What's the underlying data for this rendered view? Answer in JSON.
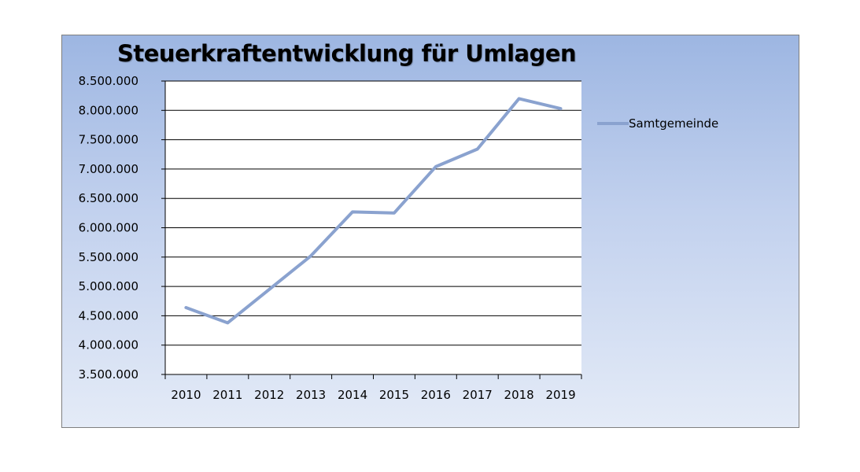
{
  "chart_data": {
    "type": "line",
    "title": "Steuerkraftentwicklung für Umlagen",
    "xlabel": "",
    "ylabel": "",
    "categories": [
      "2010",
      "2011",
      "2012",
      "2013",
      "2014",
      "2015",
      "2016",
      "2017",
      "2018",
      "2019"
    ],
    "series": [
      {
        "name": "Samtgemeinde",
        "values": [
          4640000,
          4380000,
          4950000,
          5520000,
          6270000,
          6250000,
          7040000,
          7340000,
          8200000,
          8030000
        ],
        "color": "#8aa2cf"
      }
    ],
    "ylim": [
      3500000,
      8500000
    ],
    "y_ticks": [
      "3.500.000",
      "4.000.000",
      "4.500.000",
      "5.000.000",
      "5.500.000",
      "6.000.000",
      "6.500.000",
      "7.000.000",
      "7.500.000",
      "8.000.000",
      "8.500.000"
    ],
    "grid": true,
    "legend_position": "right"
  }
}
